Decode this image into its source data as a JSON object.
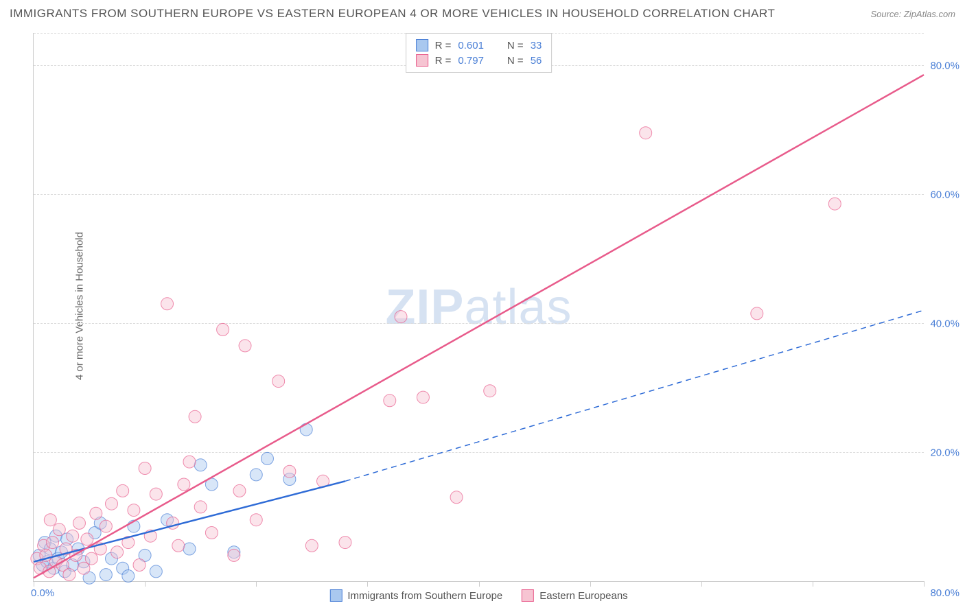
{
  "title": "IMMIGRANTS FROM SOUTHERN EUROPE VS EASTERN EUROPEAN 4 OR MORE VEHICLES IN HOUSEHOLD CORRELATION CHART",
  "source": "Source: ZipAtlas.com",
  "y_axis_label": "4 or more Vehicles in Household",
  "watermark": {
    "bold": "ZIP",
    "rest": "atlas"
  },
  "chart": {
    "type": "scatter",
    "background_color": "#ffffff",
    "grid_color": "#dddddd",
    "axis_color": "#cccccc",
    "tick_label_color": "#4a7fd6",
    "xlim": [
      0,
      80
    ],
    "ylim": [
      0,
      85
    ],
    "x_ticks": [
      0,
      10,
      20,
      30,
      40,
      50,
      60,
      70,
      80
    ],
    "y_ticks": [
      20,
      40,
      60,
      80
    ],
    "x_origin_label": "0.0%",
    "x_max_label": "80.0%",
    "y_tick_labels": [
      "20.0%",
      "40.0%",
      "60.0%",
      "80.0%"
    ],
    "marker_radius": 9,
    "marker_opacity": 0.45,
    "series": [
      {
        "name": "Immigrants from Southern Europe",
        "R": "0.601",
        "N": "33",
        "fill_color": "#a9c8ef",
        "stroke_color": "#4a7fd6",
        "trend_color": "#2e6bd6",
        "trend_width": 2.5,
        "trend": {
          "x1": 0,
          "y1": 3.0,
          "x2_solid": 28,
          "y2_solid": 15.5,
          "x2_dash": 80,
          "y2_dash": 42.0
        },
        "points": [
          [
            0.5,
            4.0
          ],
          [
            0.8,
            2.5
          ],
          [
            1.0,
            6.0
          ],
          [
            1.2,
            3.0
          ],
          [
            1.5,
            5.0
          ],
          [
            1.8,
            2.0
          ],
          [
            2.0,
            7.0
          ],
          [
            2.2,
            3.5
          ],
          [
            2.5,
            4.5
          ],
          [
            2.8,
            1.5
          ],
          [
            3.0,
            6.5
          ],
          [
            3.5,
            2.5
          ],
          [
            4.0,
            5.0
          ],
          [
            4.5,
            3.0
          ],
          [
            5.0,
            0.5
          ],
          [
            5.5,
            7.5
          ],
          [
            6.0,
            9.0
          ],
          [
            6.5,
            1.0
          ],
          [
            7.0,
            3.5
          ],
          [
            8.0,
            2.0
          ],
          [
            8.5,
            0.8
          ],
          [
            9.0,
            8.5
          ],
          [
            10.0,
            4.0
          ],
          [
            11.0,
            1.5
          ],
          [
            12.0,
            9.5
          ],
          [
            14.0,
            5.0
          ],
          [
            15.0,
            18.0
          ],
          [
            16.0,
            15.0
          ],
          [
            18.0,
            4.5
          ],
          [
            20.0,
            16.5
          ],
          [
            21.0,
            19.0
          ],
          [
            23.0,
            15.8
          ],
          [
            24.5,
            23.5
          ]
        ]
      },
      {
        "name": "Eastern Europeans",
        "R": "0.797",
        "N": "56",
        "fill_color": "#f6c4d2",
        "stroke_color": "#e85b8b",
        "trend_color": "#e85b8b",
        "trend_width": 2.5,
        "trend": {
          "x1": 0,
          "y1": 0.5,
          "x2_solid": 80,
          "y2_solid": 78.5,
          "x2_dash": 80,
          "y2_dash": 78.5
        },
        "points": [
          [
            0.3,
            3.5
          ],
          [
            0.6,
            2.0
          ],
          [
            0.9,
            5.5
          ],
          [
            1.1,
            4.0
          ],
          [
            1.4,
            1.5
          ],
          [
            1.7,
            6.0
          ],
          [
            2.0,
            3.0
          ],
          [
            2.3,
            8.0
          ],
          [
            2.6,
            2.5
          ],
          [
            2.9,
            5.0
          ],
          [
            3.2,
            1.0
          ],
          [
            3.5,
            7.0
          ],
          [
            3.8,
            4.0
          ],
          [
            4.1,
            9.0
          ],
          [
            4.5,
            2.0
          ],
          [
            4.8,
            6.5
          ],
          [
            5.2,
            3.5
          ],
          [
            5.6,
            10.5
          ],
          [
            6.0,
            5.0
          ],
          [
            6.5,
            8.5
          ],
          [
            7.0,
            12.0
          ],
          [
            7.5,
            4.5
          ],
          [
            8.0,
            14.0
          ],
          [
            8.5,
            6.0
          ],
          [
            9.0,
            11.0
          ],
          [
            9.5,
            2.5
          ],
          [
            10.0,
            17.5
          ],
          [
            10.5,
            7.0
          ],
          [
            11.0,
            13.5
          ],
          [
            12.0,
            43.0
          ],
          [
            12.5,
            9.0
          ],
          [
            13.0,
            5.5
          ],
          [
            13.5,
            15.0
          ],
          [
            14.0,
            18.5
          ],
          [
            14.5,
            25.5
          ],
          [
            15.0,
            11.5
          ],
          [
            16.0,
            7.5
          ],
          [
            17.0,
            39.0
          ],
          [
            18.0,
            4.0
          ],
          [
            18.5,
            14.0
          ],
          [
            19.0,
            36.5
          ],
          [
            20.0,
            9.5
          ],
          [
            22.0,
            31.0
          ],
          [
            23.0,
            17.0
          ],
          [
            25.0,
            5.5
          ],
          [
            26.0,
            15.5
          ],
          [
            28.0,
            6.0
          ],
          [
            32.0,
            28.0
          ],
          [
            33.0,
            41.0
          ],
          [
            35.0,
            28.5
          ],
          [
            38.0,
            13.0
          ],
          [
            41.0,
            29.5
          ],
          [
            55.0,
            69.5
          ],
          [
            65.0,
            41.5
          ],
          [
            72.0,
            58.5
          ],
          [
            1.5,
            9.5
          ]
        ]
      }
    ]
  },
  "legend_bottom": [
    {
      "swatch_fill": "#a9c8ef",
      "swatch_stroke": "#4a7fd6",
      "label": "Immigrants from Southern Europe"
    },
    {
      "swatch_fill": "#f6c4d2",
      "swatch_stroke": "#e85b8b",
      "label": "Eastern Europeans"
    }
  ]
}
